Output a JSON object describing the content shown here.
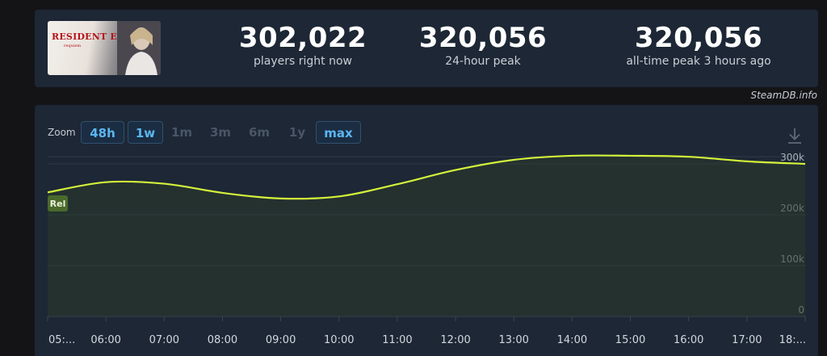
{
  "game": {
    "cover_title": "RESIDENT EVIL",
    "cover_subtitle": "requiem"
  },
  "stats": [
    {
      "value": "302,022",
      "label": "players right now"
    },
    {
      "value": "320,056",
      "label": "24-hour peak"
    },
    {
      "value": "320,056",
      "label": "all-time peak 3 hours ago"
    }
  ],
  "credit": "SteamDB.info",
  "zoom": {
    "label": "Zoom",
    "options": [
      {
        "label": "48h",
        "active": true
      },
      {
        "label": "1w",
        "active": true
      },
      {
        "label": "1m",
        "active": false
      },
      {
        "label": "3m",
        "active": false
      },
      {
        "label": "6m",
        "active": false
      },
      {
        "label": "1y",
        "active": false
      },
      {
        "label": "max",
        "active": true
      }
    ]
  },
  "icons": {
    "download": "download-icon"
  },
  "colors": {
    "line": "#d4f23a",
    "accent": "#5cb6f2",
    "panel": "#1d2735",
    "marker": "#4a6a2c"
  },
  "chart_data": {
    "type": "area",
    "x": [
      "05:00",
      "06:00",
      "07:00",
      "08:00",
      "09:00",
      "10:00",
      "11:00",
      "12:00",
      "13:00",
      "14:00",
      "15:00",
      "16:00",
      "17:00",
      "18:00"
    ],
    "x_tick_labels": [
      "05:...",
      "06:00",
      "07:00",
      "08:00",
      "09:00",
      "10:00",
      "11:00",
      "12:00",
      "13:00",
      "14:00",
      "15:00",
      "16:00",
      "17:00",
      "18:..."
    ],
    "series": [
      {
        "values": [
          244000,
          264000,
          261000,
          243000,
          232000,
          236000,
          260000,
          288000,
          308000,
          316000,
          316000,
          314000,
          305000,
          300000
        ]
      }
    ],
    "y_ticks": [
      0,
      100000,
      200000,
      300000
    ],
    "y_tick_labels": [
      "0",
      "100k",
      "200k",
      "300k"
    ],
    "ylim": [
      0,
      400000
    ],
    "grid": true,
    "marker": {
      "label": "Rel",
      "x": "05:00"
    },
    "title": "",
    "xlabel": "",
    "ylabel": ""
  }
}
